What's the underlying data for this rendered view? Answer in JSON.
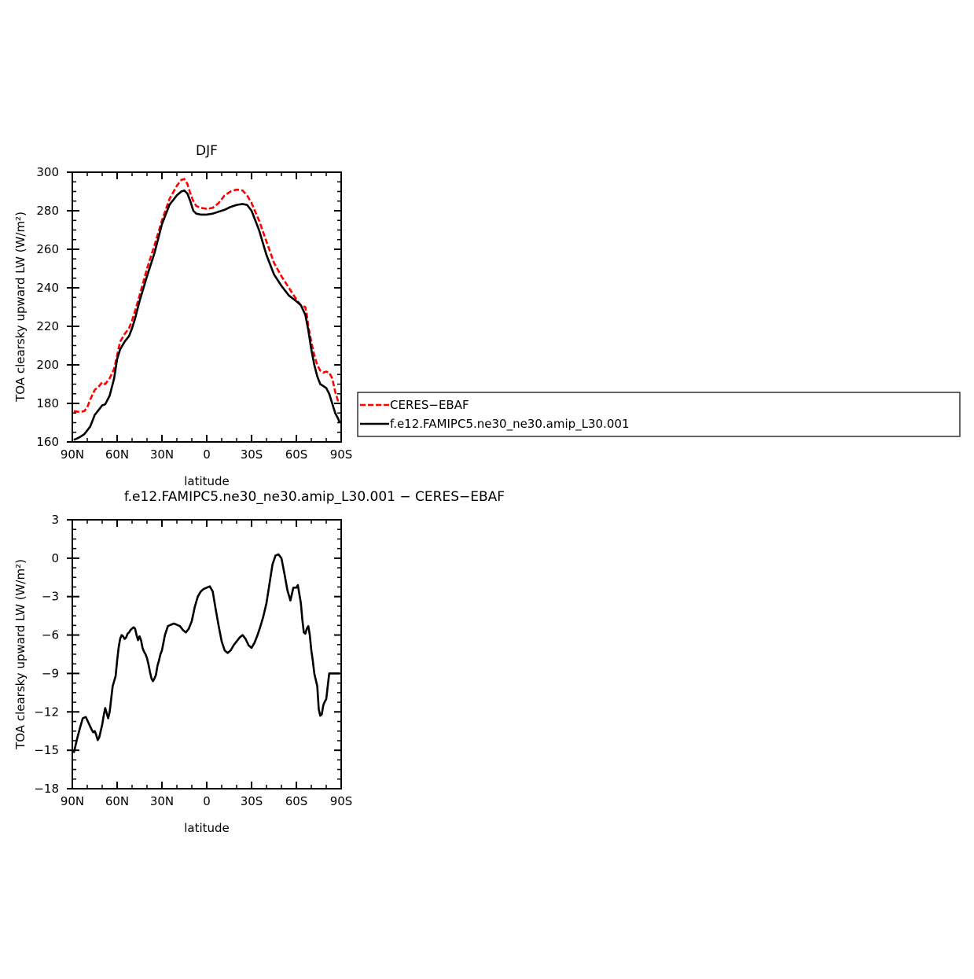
{
  "chart_data": [
    {
      "type": "line",
      "title": "DJF",
      "xlabel": "latitude",
      "ylabel": "TOA clearsky upward LW (W/m²)",
      "xlim": [
        90,
        -90
      ],
      "ylim": [
        160,
        300
      ],
      "xticks": [
        90,
        60,
        30,
        0,
        -30,
        -60,
        -90
      ],
      "xtick_labels": [
        "90N",
        "60N",
        "30N",
        "0",
        "30S",
        "60S",
        "90S"
      ],
      "yticks": [
        160,
        180,
        200,
        220,
        240,
        260,
        280,
        300
      ],
      "ytick_labels": [
        "160",
        "180",
        "200",
        "220",
        "240",
        "260",
        "280",
        "300"
      ],
      "legend": "right-outside",
      "series": [
        {
          "name": "CERES−EBAF",
          "color": "#ff0000",
          "dash": "dashed",
          "x": [
            89,
            85,
            82,
            80,
            78,
            75,
            72,
            70,
            68,
            65,
            62,
            60,
            58,
            55,
            52,
            50,
            48,
            45,
            40,
            35,
            30,
            25,
            20,
            17,
            15,
            13,
            11,
            9,
            7,
            4,
            0,
            -4,
            -8,
            -12,
            -16,
            -20,
            -24,
            -27,
            -30,
            -35,
            -40,
            -45,
            -50,
            -55,
            -60,
            -63,
            -66,
            -67,
            -68,
            -70,
            -72,
            -74,
            -76,
            -78,
            -80,
            -82,
            -84,
            -86,
            -88,
            -89
          ],
          "y": [
            176,
            175.5,
            176,
            178,
            182,
            187,
            189,
            191,
            190,
            193,
            198,
            205,
            212,
            216,
            219,
            223,
            228,
            236,
            250,
            262,
            275,
            286,
            293,
            296,
            296.5,
            294,
            289,
            285,
            282.5,
            281.5,
            281,
            281.5,
            284,
            288,
            290,
            291,
            290.5,
            288,
            284,
            275,
            264,
            253,
            246,
            240,
            234,
            231,
            230,
            226,
            220,
            212,
            205,
            200,
            197,
            196,
            196.5,
            196,
            193,
            186,
            181,
            180
          ]
        },
        {
          "name": "f.e12.FAMIPC5.ne30_ne30.amip_L30.001",
          "color": "#000000",
          "dash": "solid",
          "x": [
            89,
            85,
            82,
            80,
            78,
            75,
            72,
            70,
            68,
            65,
            62,
            60,
            58,
            55,
            52,
            50,
            48,
            45,
            40,
            35,
            30,
            25,
            20,
            17,
            15,
            13,
            11,
            9,
            7,
            4,
            0,
            -4,
            -8,
            -12,
            -16,
            -20,
            -24,
            -27,
            -30,
            -35,
            -40,
            -45,
            -50,
            -55,
            -60,
            -63,
            -66,
            -68,
            -70,
            -72,
            -74,
            -76,
            -78,
            -80,
            -82,
            -84,
            -86,
            -88,
            -89
          ],
          "y": [
            161,
            162.5,
            164,
            166,
            168,
            174,
            177,
            179,
            179.5,
            184,
            193,
            203,
            208,
            212,
            215,
            219,
            224,
            233,
            246,
            258,
            273,
            283,
            288,
            290,
            290.5,
            289,
            285,
            280,
            278.5,
            278,
            278,
            278.5,
            279.5,
            280.5,
            282,
            283,
            283.5,
            283,
            280,
            270,
            257,
            247,
            241,
            236,
            233,
            231,
            226,
            218,
            208,
            200,
            194,
            190,
            189,
            188,
            185,
            180,
            175,
            172,
            170
          ]
        }
      ]
    },
    {
      "type": "line",
      "title": "f.e12.FAMIPC5.ne30_ne30.amip_L30.001 − CERES−EBAF",
      "xlabel": "latitude",
      "ylabel": "TOA clearsky upward LW (W/m²)",
      "xlim": [
        90,
        -90
      ],
      "ylim": [
        -18,
        3
      ],
      "xticks": [
        90,
        60,
        30,
        0,
        -30,
        -60,
        -90
      ],
      "xtick_labels": [
        "90N",
        "60N",
        "30N",
        "0",
        "30S",
        "60S",
        "90S"
      ],
      "yticks": [
        -18,
        -15,
        -12,
        -9,
        -6,
        -3,
        0,
        3
      ],
      "ytick_labels": [
        "−18",
        "−15",
        "−12",
        "−9",
        "−6",
        "−3",
        "0",
        "3"
      ],
      "series": [
        {
          "color": "#000000",
          "x": [
            89,
            87,
            85,
            83,
            81,
            79,
            77,
            76,
            75,
            74,
            73,
            72,
            71,
            70,
            69,
            68,
            67,
            66,
            65,
            64,
            63,
            62,
            61,
            60,
            59,
            58,
            57,
            56,
            55,
            54,
            53,
            52,
            51,
            50,
            49,
            48,
            47,
            46,
            45,
            44,
            43,
            42,
            41,
            40,
            39,
            38,
            37,
            36,
            35,
            34,
            33,
            32,
            31,
            30,
            28,
            26,
            24,
            22,
            20,
            18,
            16,
            14,
            12,
            10,
            8,
            6,
            4,
            2,
            0,
            -2,
            -4,
            -6,
            -8,
            -10,
            -12,
            -14,
            -16,
            -18,
            -20,
            -22,
            -24,
            -26,
            -28,
            -30,
            -32,
            -34,
            -36,
            -38,
            -40,
            -42,
            -44,
            -46,
            -48,
            -50,
            -52,
            -54,
            -56,
            -58,
            -60,
            -61,
            -62,
            -63,
            -64,
            -65,
            -66,
            -67,
            -68,
            -69,
            -70,
            -71,
            -72,
            -73,
            -74,
            -75,
            -76,
            -77,
            -78,
            -79,
            -80,
            -81,
            -82,
            -83,
            -84,
            -85,
            -86,
            -87,
            -88,
            -89
          ],
          "y": [
            -15.2,
            -14.2,
            -13.3,
            -12.5,
            -12.4,
            -12.9,
            -13.4,
            -13.6,
            -13.5,
            -13.8,
            -14.2,
            -14,
            -13.5,
            -13,
            -12.3,
            -11.7,
            -12.1,
            -12.5,
            -12,
            -11,
            -10,
            -9.6,
            -9.2,
            -8,
            -7,
            -6.3,
            -6,
            -6.1,
            -6.3,
            -6.2,
            -5.9,
            -5.8,
            -5.6,
            -5.5,
            -5.4,
            -5.5,
            -6,
            -6.4,
            -6.1,
            -6.4,
            -7,
            -7.3,
            -7.5,
            -7.8,
            -8.3,
            -8.9,
            -9.4,
            -9.6,
            -9.4,
            -9.1,
            -8.4,
            -8,
            -7.5,
            -7.2,
            -6,
            -5.3,
            -5.2,
            -5.1,
            -5.2,
            -5.3,
            -5.6,
            -5.8,
            -5.5,
            -4.9,
            -3.8,
            -3,
            -2.6,
            -2.4,
            -2.3,
            -2.2,
            -2.6,
            -4,
            -5.3,
            -6.5,
            -7.2,
            -7.4,
            -7.2,
            -6.8,
            -6.5,
            -6.2,
            -6,
            -6.3,
            -6.8,
            -7,
            -6.6,
            -6,
            -5.3,
            -4.5,
            -3.5,
            -2,
            -0.5,
            0.2,
            0.3,
            0,
            -1.2,
            -2.5,
            -3.3,
            -2.3,
            -2.3,
            -2.1,
            -2.8,
            -3.5,
            -4.8,
            -5.8,
            -5.9,
            -5.5,
            -5.3,
            -6,
            -7.2,
            -8,
            -9,
            -9.5,
            -10,
            -11.8,
            -12.3,
            -12.2,
            -11.5,
            -11.2,
            -11,
            -10,
            -9,
            -9,
            -9,
            -9,
            -9,
            -9,
            -9,
            -9
          ],
          "_note_unused": null
        }
      ]
    }
  ]
}
